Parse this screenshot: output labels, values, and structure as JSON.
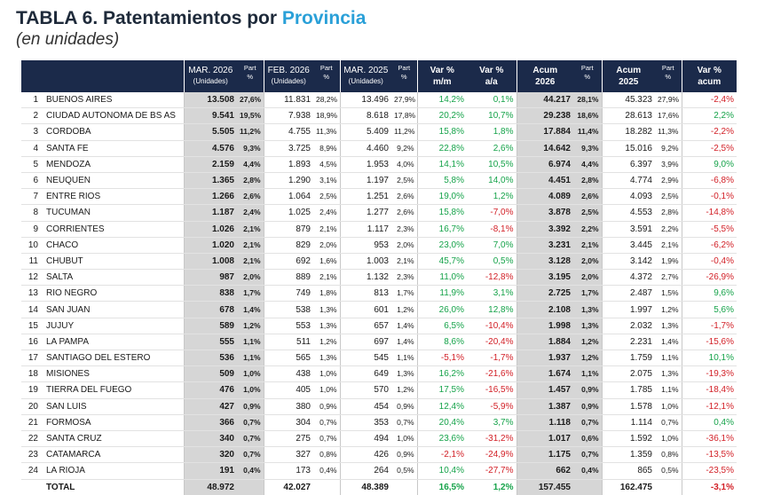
{
  "header": {
    "title_prefix": "TABLA 6. Patentamientos por ",
    "title_highlight": "Provincia",
    "subtitle": "(en unidades)"
  },
  "columns": {
    "mar2026": "MAR. 2026",
    "feb2026": "FEB. 2026",
    "mar2025": "MAR. 2025",
    "unidades": "(Unidades)",
    "part_l1": "Part",
    "part_l2": "%",
    "varmm_l1": "Var %",
    "varmm_l2": "m/m",
    "varaa_l1": "Var %",
    "varaa_l2": "a/a",
    "acum2026_l1": "Acum",
    "acum2026_l2": "2026",
    "acum2025_l1": "Acum",
    "acum2025_l2": "2025",
    "varacum_l1": "Var %",
    "varacum_l2": "acum"
  },
  "rows": [
    {
      "rank": "1",
      "name": "BUENOS AIRES",
      "m26": "13.508",
      "p26": "27,6%",
      "f26": "11.831",
      "pf26": "28,2%",
      "m25": "13.496",
      "pm25": "27,9%",
      "vmm": "14,2%",
      "vaa": "0,1%",
      "a26": "44.217",
      "pa26": "28,1%",
      "a25": "45.323",
      "pa25": "27,9%",
      "vac": "-2,4%"
    },
    {
      "rank": "2",
      "name": "CIUDAD AUTONOMA DE BS AS",
      "m26": "9.541",
      "p26": "19,5%",
      "f26": "7.938",
      "pf26": "18,9%",
      "m25": "8.618",
      "pm25": "17,8%",
      "vmm": "20,2%",
      "vaa": "10,7%",
      "a26": "29.238",
      "pa26": "18,6%",
      "a25": "28.613",
      "pa25": "17,6%",
      "vac": "2,2%"
    },
    {
      "rank": "3",
      "name": "CORDOBA",
      "m26": "5.505",
      "p26": "11,2%",
      "f26": "4.755",
      "pf26": "11,3%",
      "m25": "5.409",
      "pm25": "11,2%",
      "vmm": "15,8%",
      "vaa": "1,8%",
      "a26": "17.884",
      "pa26": "11,4%",
      "a25": "18.282",
      "pa25": "11,3%",
      "vac": "-2,2%"
    },
    {
      "rank": "4",
      "name": "SANTA FE",
      "m26": "4.576",
      "p26": "9,3%",
      "f26": "3.725",
      "pf26": "8,9%",
      "m25": "4.460",
      "pm25": "9,2%",
      "vmm": "22,8%",
      "vaa": "2,6%",
      "a26": "14.642",
      "pa26": "9,3%",
      "a25": "15.016",
      "pa25": "9,2%",
      "vac": "-2,5%"
    },
    {
      "rank": "5",
      "name": "MENDOZA",
      "m26": "2.159",
      "p26": "4,4%",
      "f26": "1.893",
      "pf26": "4,5%",
      "m25": "1.953",
      "pm25": "4,0%",
      "vmm": "14,1%",
      "vaa": "10,5%",
      "a26": "6.974",
      "pa26": "4,4%",
      "a25": "6.397",
      "pa25": "3,9%",
      "vac": "9,0%"
    },
    {
      "rank": "6",
      "name": "NEUQUEN",
      "m26": "1.365",
      "p26": "2,8%",
      "f26": "1.290",
      "pf26": "3,1%",
      "m25": "1.197",
      "pm25": "2,5%",
      "vmm": "5,8%",
      "vaa": "14,0%",
      "a26": "4.451",
      "pa26": "2,8%",
      "a25": "4.774",
      "pa25": "2,9%",
      "vac": "-6,8%"
    },
    {
      "rank": "7",
      "name": "ENTRE RIOS",
      "m26": "1.266",
      "p26": "2,6%",
      "f26": "1.064",
      "pf26": "2,5%",
      "m25": "1.251",
      "pm25": "2,6%",
      "vmm": "19,0%",
      "vaa": "1,2%",
      "a26": "4.089",
      "pa26": "2,6%",
      "a25": "4.093",
      "pa25": "2,5%",
      "vac": "-0,1%"
    },
    {
      "rank": "8",
      "name": "TUCUMAN",
      "m26": "1.187",
      "p26": "2,4%",
      "f26": "1.025",
      "pf26": "2,4%",
      "m25": "1.277",
      "pm25": "2,6%",
      "vmm": "15,8%",
      "vaa": "-7,0%",
      "a26": "3.878",
      "pa26": "2,5%",
      "a25": "4.553",
      "pa25": "2,8%",
      "vac": "-14,8%"
    },
    {
      "rank": "9",
      "name": "CORRIENTES",
      "m26": "1.026",
      "p26": "2,1%",
      "f26": "879",
      "pf26": "2,1%",
      "m25": "1.117",
      "pm25": "2,3%",
      "vmm": "16,7%",
      "vaa": "-8,1%",
      "a26": "3.392",
      "pa26": "2,2%",
      "a25": "3.591",
      "pa25": "2,2%",
      "vac": "-5,5%"
    },
    {
      "rank": "10",
      "name": "CHACO",
      "m26": "1.020",
      "p26": "2,1%",
      "f26": "829",
      "pf26": "2,0%",
      "m25": "953",
      "pm25": "2,0%",
      "vmm": "23,0%",
      "vaa": "7,0%",
      "a26": "3.231",
      "pa26": "2,1%",
      "a25": "3.445",
      "pa25": "2,1%",
      "vac": "-6,2%"
    },
    {
      "rank": "11",
      "name": "CHUBUT",
      "m26": "1.008",
      "p26": "2,1%",
      "f26": "692",
      "pf26": "1,6%",
      "m25": "1.003",
      "pm25": "2,1%",
      "vmm": "45,7%",
      "vaa": "0,5%",
      "a26": "3.128",
      "pa26": "2,0%",
      "a25": "3.142",
      "pa25": "1,9%",
      "vac": "-0,4%"
    },
    {
      "rank": "12",
      "name": "SALTA",
      "m26": "987",
      "p26": "2,0%",
      "f26": "889",
      "pf26": "2,1%",
      "m25": "1.132",
      "pm25": "2,3%",
      "vmm": "11,0%",
      "vaa": "-12,8%",
      "a26": "3.195",
      "pa26": "2,0%",
      "a25": "4.372",
      "pa25": "2,7%",
      "vac": "-26,9%"
    },
    {
      "rank": "13",
      "name": "RIO NEGRO",
      "m26": "838",
      "p26": "1,7%",
      "f26": "749",
      "pf26": "1,8%",
      "m25": "813",
      "pm25": "1,7%",
      "vmm": "11,9%",
      "vaa": "3,1%",
      "a26": "2.725",
      "pa26": "1,7%",
      "a25": "2.487",
      "pa25": "1,5%",
      "vac": "9,6%"
    },
    {
      "rank": "14",
      "name": "SAN JUAN",
      "m26": "678",
      "p26": "1,4%",
      "f26": "538",
      "pf26": "1,3%",
      "m25": "601",
      "pm25": "1,2%",
      "vmm": "26,0%",
      "vaa": "12,8%",
      "a26": "2.108",
      "pa26": "1,3%",
      "a25": "1.997",
      "pa25": "1,2%",
      "vac": "5,6%"
    },
    {
      "rank": "15",
      "name": "JUJUY",
      "m26": "589",
      "p26": "1,2%",
      "f26": "553",
      "pf26": "1,3%",
      "m25": "657",
      "pm25": "1,4%",
      "vmm": "6,5%",
      "vaa": "-10,4%",
      "a26": "1.998",
      "pa26": "1,3%",
      "a25": "2.032",
      "pa25": "1,3%",
      "vac": "-1,7%"
    },
    {
      "rank": "16",
      "name": "LA PAMPA",
      "m26": "555",
      "p26": "1,1%",
      "f26": "511",
      "pf26": "1,2%",
      "m25": "697",
      "pm25": "1,4%",
      "vmm": "8,6%",
      "vaa": "-20,4%",
      "a26": "1.884",
      "pa26": "1,2%",
      "a25": "2.231",
      "pa25": "1,4%",
      "vac": "-15,6%"
    },
    {
      "rank": "17",
      "name": "SANTIAGO DEL ESTERO",
      "m26": "536",
      "p26": "1,1%",
      "f26": "565",
      "pf26": "1,3%",
      "m25": "545",
      "pm25": "1,1%",
      "vmm": "-5,1%",
      "vaa": "-1,7%",
      "a26": "1.937",
      "pa26": "1,2%",
      "a25": "1.759",
      "pa25": "1,1%",
      "vac": "10,1%"
    },
    {
      "rank": "18",
      "name": "MISIONES",
      "m26": "509",
      "p26": "1,0%",
      "f26": "438",
      "pf26": "1,0%",
      "m25": "649",
      "pm25": "1,3%",
      "vmm": "16,2%",
      "vaa": "-21,6%",
      "a26": "1.674",
      "pa26": "1,1%",
      "a25": "2.075",
      "pa25": "1,3%",
      "vac": "-19,3%"
    },
    {
      "rank": "19",
      "name": "TIERRA DEL FUEGO",
      "m26": "476",
      "p26": "1,0%",
      "f26": "405",
      "pf26": "1,0%",
      "m25": "570",
      "pm25": "1,2%",
      "vmm": "17,5%",
      "vaa": "-16,5%",
      "a26": "1.457",
      "pa26": "0,9%",
      "a25": "1.785",
      "pa25": "1,1%",
      "vac": "-18,4%"
    },
    {
      "rank": "20",
      "name": "SAN LUIS",
      "m26": "427",
      "p26": "0,9%",
      "f26": "380",
      "pf26": "0,9%",
      "m25": "454",
      "pm25": "0,9%",
      "vmm": "12,4%",
      "vaa": "-5,9%",
      "a26": "1.387",
      "pa26": "0,9%",
      "a25": "1.578",
      "pa25": "1,0%",
      "vac": "-12,1%"
    },
    {
      "rank": "21",
      "name": "FORMOSA",
      "m26": "366",
      "p26": "0,7%",
      "f26": "304",
      "pf26": "0,7%",
      "m25": "353",
      "pm25": "0,7%",
      "vmm": "20,4%",
      "vaa": "3,7%",
      "a26": "1.118",
      "pa26": "0,7%",
      "a25": "1.114",
      "pa25": "0,7%",
      "vac": "0,4%"
    },
    {
      "rank": "22",
      "name": "SANTA CRUZ",
      "m26": "340",
      "p26": "0,7%",
      "f26": "275",
      "pf26": "0,7%",
      "m25": "494",
      "pm25": "1,0%",
      "vmm": "23,6%",
      "vaa": "-31,2%",
      "a26": "1.017",
      "pa26": "0,6%",
      "a25": "1.592",
      "pa25": "1,0%",
      "vac": "-36,1%"
    },
    {
      "rank": "23",
      "name": "CATAMARCA",
      "m26": "320",
      "p26": "0,7%",
      "f26": "327",
      "pf26": "0,8%",
      "m25": "426",
      "pm25": "0,9%",
      "vmm": "-2,1%",
      "vaa": "-24,9%",
      "a26": "1.175",
      "pa26": "0,7%",
      "a25": "1.359",
      "pa25": "0,8%",
      "vac": "-13,5%"
    },
    {
      "rank": "24",
      "name": "LA RIOJA",
      "m26": "191",
      "p26": "0,4%",
      "f26": "173",
      "pf26": "0,4%",
      "m25": "264",
      "pm25": "0,5%",
      "vmm": "10,4%",
      "vaa": "-27,7%",
      "a26": "662",
      "pa26": "0,4%",
      "a25": "865",
      "pa25": "0,5%",
      "vac": "-23,5%"
    }
  ],
  "total": {
    "label": "TOTAL",
    "m26": "48.972",
    "f26": "42.027",
    "m25": "48.389",
    "vmm": "16,5%",
    "vaa": "1,2%",
    "a26": "157.455",
    "a25": "162.475",
    "vac": "-3,1%"
  }
}
